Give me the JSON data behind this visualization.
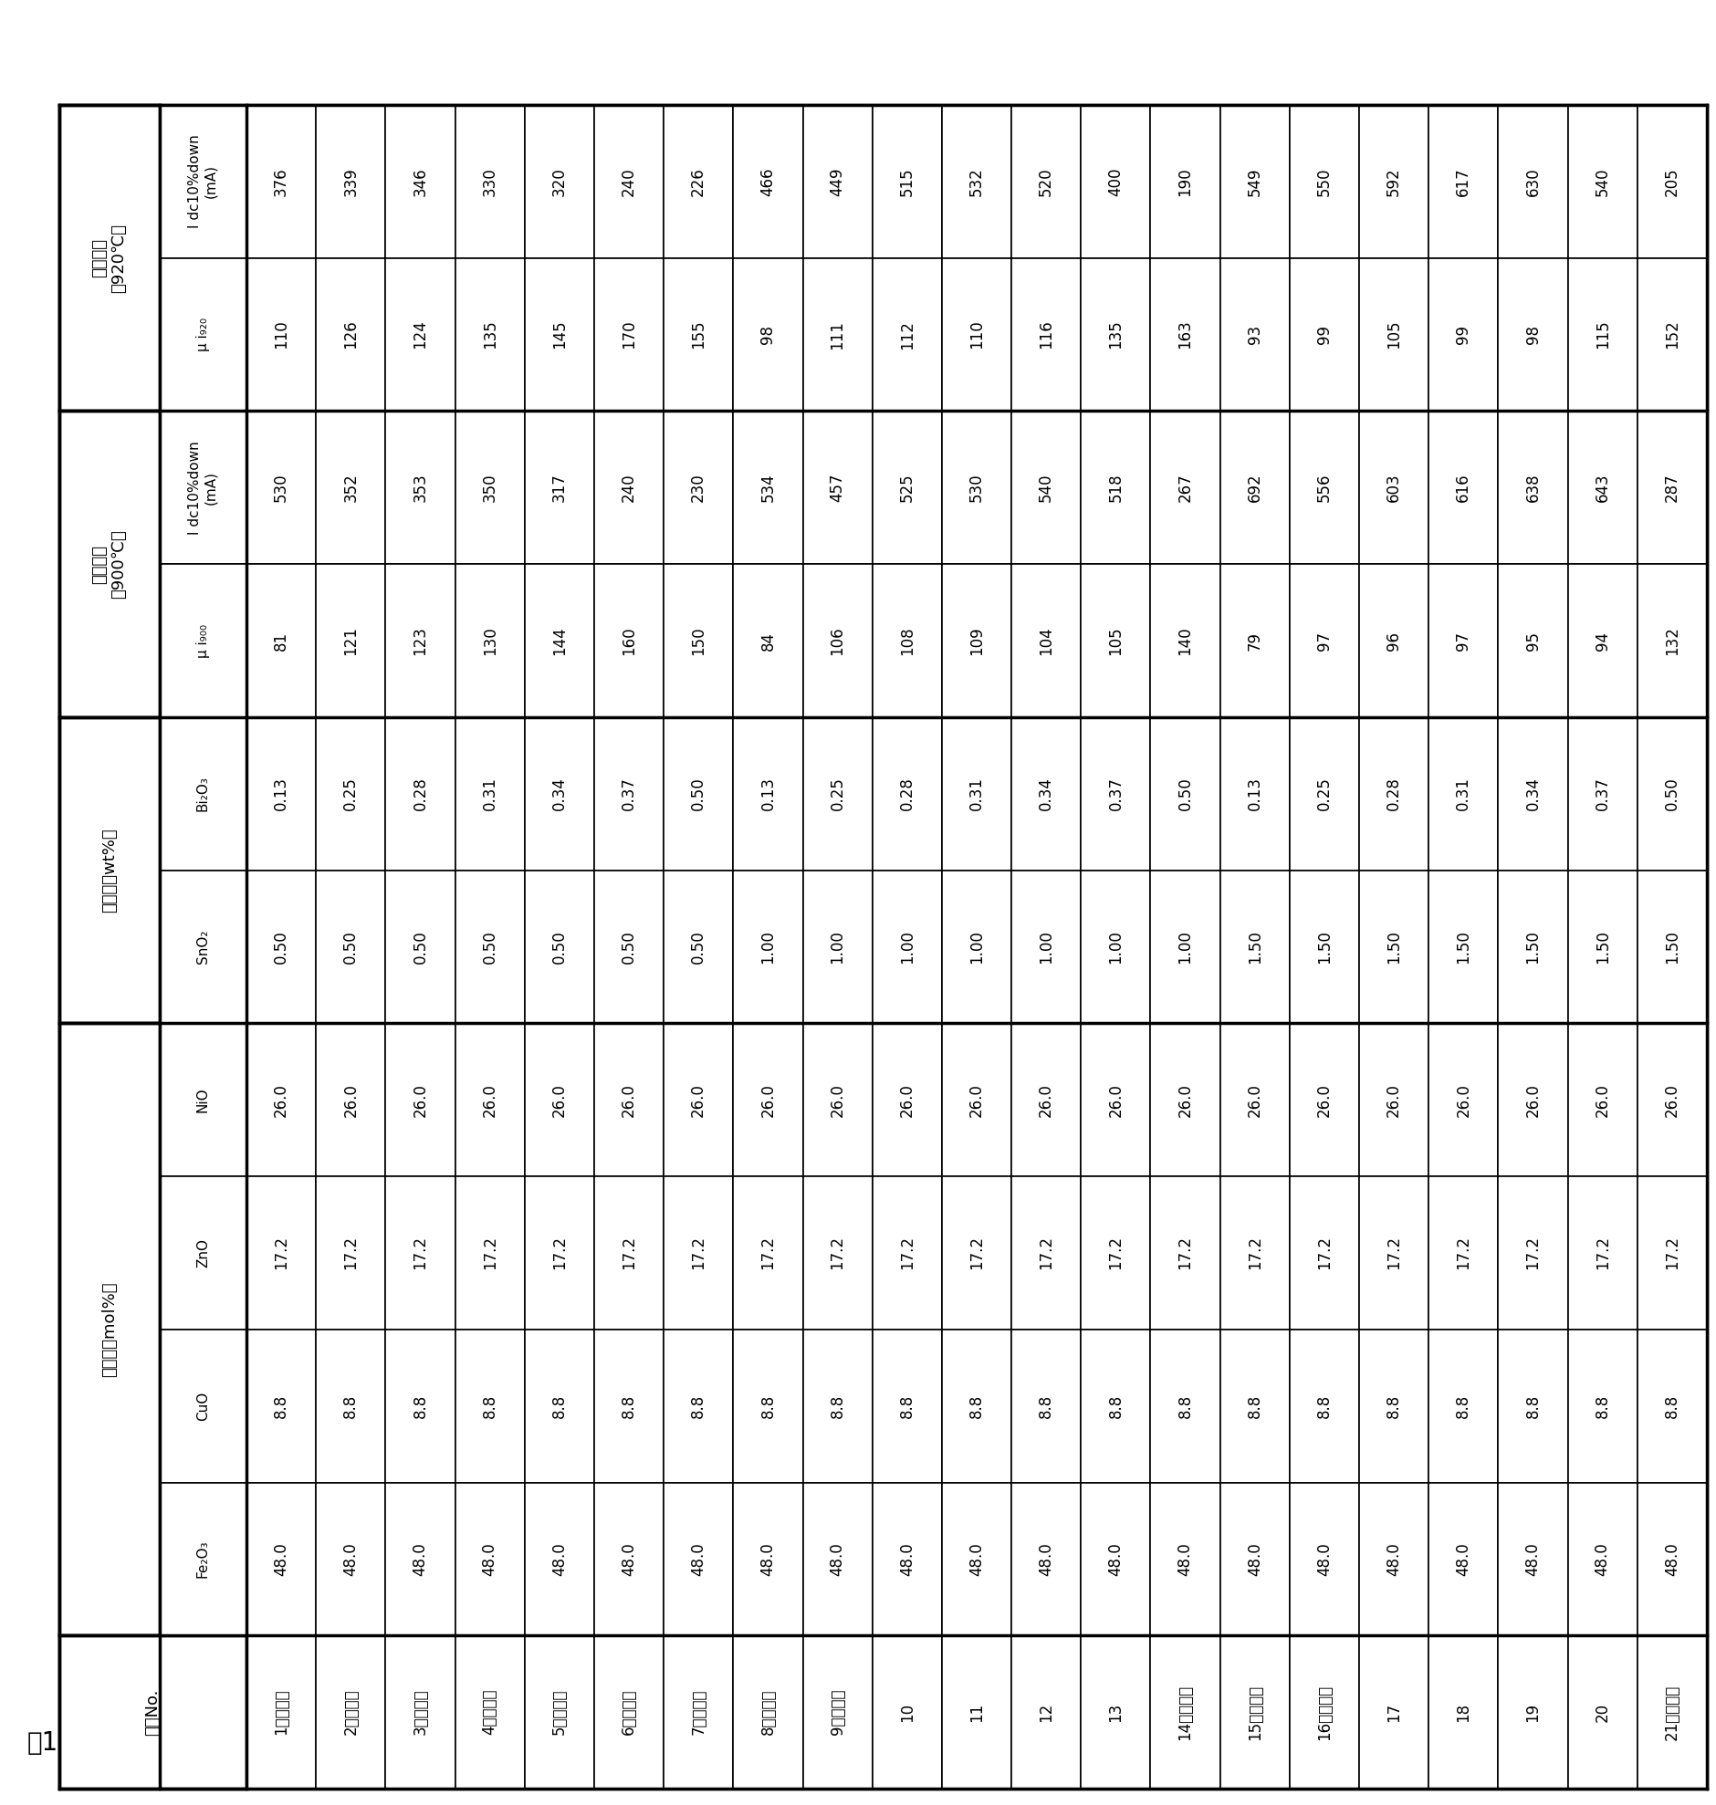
{
  "title": "表1",
  "sample_nos": [
    "1（比較）",
    "2（比較）",
    "3（比較）",
    "4（比較）",
    "5（比較）",
    "6（比較）",
    "7（比較）",
    "8（比較）",
    "9（比較）",
    "10",
    "11",
    "12",
    "13",
    "14（比較）",
    "15（比較）",
    "16（比較）",
    "17",
    "18",
    "19",
    "20",
    "21（比較）"
  ],
  "Fe2O3": [
    "48.0",
    "48.0",
    "48.0",
    "48.0",
    "48.0",
    "48.0",
    "48.0",
    "48.0",
    "48.0",
    "48.0",
    "48.0",
    "48.0",
    "48.0",
    "48.0",
    "48.0",
    "48.0",
    "48.0",
    "48.0",
    "48.0",
    "48.0",
    "48.0"
  ],
  "CuO": [
    "8.8",
    "8.8",
    "8.8",
    "8.8",
    "8.8",
    "8.8",
    "8.8",
    "8.8",
    "8.8",
    "8.8",
    "8.8",
    "8.8",
    "8.8",
    "8.8",
    "8.8",
    "8.8",
    "8.8",
    "8.8",
    "8.8",
    "8.8",
    "8.8"
  ],
  "ZnO": [
    "17.2",
    "17.2",
    "17.2",
    "17.2",
    "17.2",
    "17.2",
    "17.2",
    "17.2",
    "17.2",
    "17.2",
    "17.2",
    "17.2",
    "17.2",
    "17.2",
    "17.2",
    "17.2",
    "17.2",
    "17.2",
    "17.2",
    "17.2",
    "17.2"
  ],
  "NiO": [
    "26.0",
    "26.0",
    "26.0",
    "26.0",
    "26.0",
    "26.0",
    "26.0",
    "26.0",
    "26.0",
    "26.0",
    "26.0",
    "26.0",
    "26.0",
    "26.0",
    "26.0",
    "26.0",
    "26.0",
    "26.0",
    "26.0",
    "26.0",
    "26.0"
  ],
  "SnO2": [
    "0.50",
    "0.50",
    "0.50",
    "0.50",
    "0.50",
    "0.50",
    "0.50",
    "1.00",
    "1.00",
    "1.00",
    "1.00",
    "1.00",
    "1.00",
    "1.00",
    "1.50",
    "1.50",
    "1.50",
    "1.50",
    "1.50",
    "1.50",
    "1.50"
  ],
  "Bi2O3": [
    "0.13",
    "0.25",
    "0.28",
    "0.31",
    "0.34",
    "0.37",
    "0.50",
    "0.13",
    "0.25",
    "0.28",
    "0.31",
    "0.34",
    "0.37",
    "0.50",
    "0.13",
    "0.25",
    "0.28",
    "0.31",
    "0.34",
    "0.37",
    "0.50"
  ],
  "mu_i900": [
    "81",
    "121",
    "123",
    "130",
    "144",
    "160",
    "150",
    "84",
    "106",
    "108",
    "109",
    "104",
    "105",
    "140",
    "79",
    "97",
    "96",
    "97",
    "95",
    "94",
    "132"
  ],
  "Idc10pdown_900": [
    "530",
    "352",
    "353",
    "350",
    "317",
    "240",
    "230",
    "534",
    "457",
    "525",
    "530",
    "540",
    "518",
    "267",
    "692",
    "556",
    "603",
    "616",
    "638",
    "643",
    "287"
  ],
  "mu_i920": [
    "110",
    "126",
    "124",
    "135",
    "145",
    "170",
    "155",
    "98",
    "111",
    "112",
    "110",
    "116",
    "135",
    "163",
    "93",
    "99",
    "105",
    "99",
    "98",
    "115",
    "152"
  ],
  "Idc10pdown_920": [
    "376",
    "339",
    "346",
    "330",
    "320",
    "240",
    "226",
    "466",
    "449",
    "515",
    "532",
    "520",
    "400",
    "190",
    "549",
    "550",
    "592",
    "617",
    "630",
    "540",
    "205"
  ],
  "bg_color": "#ffffff",
  "line_color": "#000000",
  "text_color": "#000000"
}
